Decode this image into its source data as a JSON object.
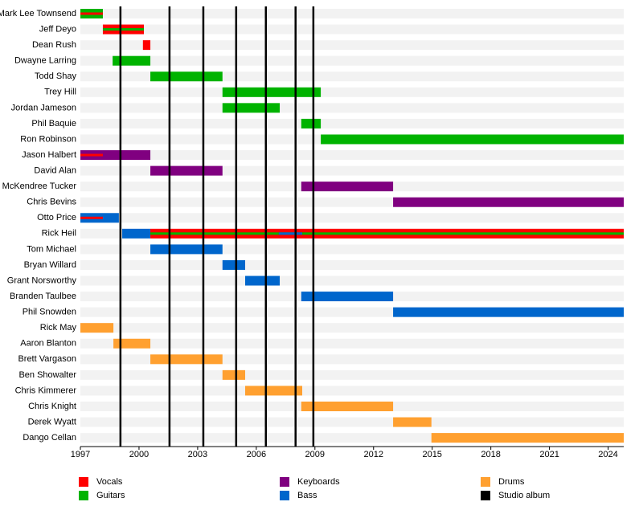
{
  "chart_data": {
    "type": "timeline",
    "xlim": [
      1997,
      2024.8
    ],
    "xticks": [
      1997,
      2000,
      2003,
      2006,
      2009,
      2012,
      2015,
      2018,
      2021,
      2024
    ],
    "roles": [
      {
        "name": "Vocals",
        "color": "#ff0000"
      },
      {
        "name": "Guitars",
        "color": "#00b300"
      },
      {
        "name": "Keyboards",
        "color": "#800080"
      },
      {
        "name": "Bass",
        "color": "#0066cc"
      },
      {
        "name": "Drums",
        "color": "#ffa030"
      }
    ],
    "albums": {
      "name": "Studio album",
      "color": "#000000",
      "values": [
        1999.05,
        2001.56,
        2003.29,
        2004.97,
        2006.49,
        2008.01,
        2008.92
      ]
    },
    "members": [
      {
        "name": "Mark Lee Townsend",
        "bars": [
          {
            "role": "Guitars",
            "start": 1997,
            "end": 1998.15
          },
          {
            "role": "Vocals",
            "start": 1997,
            "end": 1998.15,
            "stripe": true
          }
        ]
      },
      {
        "name": "Jeff Deyo",
        "bars": [
          {
            "role": "Vocals",
            "start": 1998.15,
            "end": 2000.25
          },
          {
            "role": "Guitars",
            "start": 1998.15,
            "end": 2000.25,
            "stripe": true
          }
        ]
      },
      {
        "name": "Dean Rush",
        "bars": [
          {
            "role": "Vocals",
            "start": 2000.2,
            "end": 2000.58
          }
        ]
      },
      {
        "name": "Dwayne Larring",
        "bars": [
          {
            "role": "Guitars",
            "start": 1998.65,
            "end": 2000.58
          }
        ]
      },
      {
        "name": "Todd Shay",
        "bars": [
          {
            "role": "Guitars",
            "start": 2000.58,
            "end": 2004.27
          }
        ]
      },
      {
        "name": "Trey Hill",
        "bars": [
          {
            "role": "Guitars",
            "start": 2004.27,
            "end": 2009.3
          }
        ]
      },
      {
        "name": "Jordan Jameson",
        "bars": [
          {
            "role": "Guitars",
            "start": 2004.27,
            "end": 2007.2
          }
        ]
      },
      {
        "name": "Phil Baquie",
        "bars": [
          {
            "role": "Guitars",
            "start": 2008.3,
            "end": 2009.3
          }
        ]
      },
      {
        "name": "Ron Robinson",
        "bars": [
          {
            "role": "Guitars",
            "start": 2009.3,
            "end": 2024.8
          }
        ]
      },
      {
        "name": "Jason Halbert",
        "bars": [
          {
            "role": "Keyboards",
            "start": 1997,
            "end": 2000.58
          },
          {
            "role": "Vocals",
            "start": 1997,
            "end": 1998.15,
            "stripe": true
          }
        ]
      },
      {
        "name": "David Alan",
        "bars": [
          {
            "role": "Keyboards",
            "start": 2000.58,
            "end": 2004.27
          }
        ]
      },
      {
        "name": "McKendree Tucker",
        "bars": [
          {
            "role": "Keyboards",
            "start": 2008.3,
            "end": 2013.0
          }
        ]
      },
      {
        "name": "Chris Bevins",
        "bars": [
          {
            "role": "Keyboards",
            "start": 2013.0,
            "end": 2024.8
          }
        ]
      },
      {
        "name": "Otto Price",
        "bars": [
          {
            "role": "Bass",
            "start": 1997,
            "end": 1998.97
          },
          {
            "role": "Vocals",
            "start": 1997,
            "end": 1998.15,
            "stripe": true
          }
        ]
      },
      {
        "name": "Rick Heil",
        "bars": [
          {
            "role": "Bass",
            "start": 1999.14,
            "end": 2000.58
          },
          {
            "role": "Vocals",
            "start": 2000.58,
            "end": 2024.8
          },
          {
            "role": "Guitars",
            "start": 2000.58,
            "end": 2024.8,
            "stripe": true
          },
          {
            "role": "Bass",
            "start": 2007.15,
            "end": 2008.35,
            "stripe": true
          }
        ]
      },
      {
        "name": "Tom Michael",
        "bars": [
          {
            "role": "Bass",
            "start": 2000.58,
            "end": 2004.27
          }
        ]
      },
      {
        "name": "Bryan Willard",
        "bars": [
          {
            "role": "Bass",
            "start": 2004.27,
            "end": 2005.43
          }
        ]
      },
      {
        "name": "Grant Norsworthy",
        "bars": [
          {
            "role": "Bass",
            "start": 2005.43,
            "end": 2007.2
          }
        ]
      },
      {
        "name": "Branden Taulbee",
        "bars": [
          {
            "role": "Bass",
            "start": 2008.3,
            "end": 2013.0
          }
        ]
      },
      {
        "name": "Phil Snowden",
        "bars": [
          {
            "role": "Bass",
            "start": 2013.0,
            "end": 2024.8
          }
        ]
      },
      {
        "name": "Rick May",
        "bars": [
          {
            "role": "Drums",
            "start": 1997,
            "end": 1998.69
          }
        ]
      },
      {
        "name": "Aaron Blanton",
        "bars": [
          {
            "role": "Drums",
            "start": 1998.69,
            "end": 2000.58
          }
        ]
      },
      {
        "name": "Brett Vargason",
        "bars": [
          {
            "role": "Drums",
            "start": 2000.58,
            "end": 2004.27
          }
        ]
      },
      {
        "name": "Ben Showalter",
        "bars": [
          {
            "role": "Drums",
            "start": 2004.27,
            "end": 2005.43
          }
        ]
      },
      {
        "name": "Chris Kimmerer",
        "bars": [
          {
            "role": "Drums",
            "start": 2005.43,
            "end": 2008.35
          }
        ]
      },
      {
        "name": "Chris Knight",
        "bars": [
          {
            "role": "Drums",
            "start": 2008.3,
            "end": 2013.0
          }
        ]
      },
      {
        "name": "Derek Wyatt",
        "bars": [
          {
            "role": "Drums",
            "start": 2013.0,
            "end": 2014.96
          }
        ]
      },
      {
        "name": "Dango Cellan",
        "bars": [
          {
            "role": "Drums",
            "start": 2014.96,
            "end": 2024.8
          }
        ]
      }
    ]
  }
}
